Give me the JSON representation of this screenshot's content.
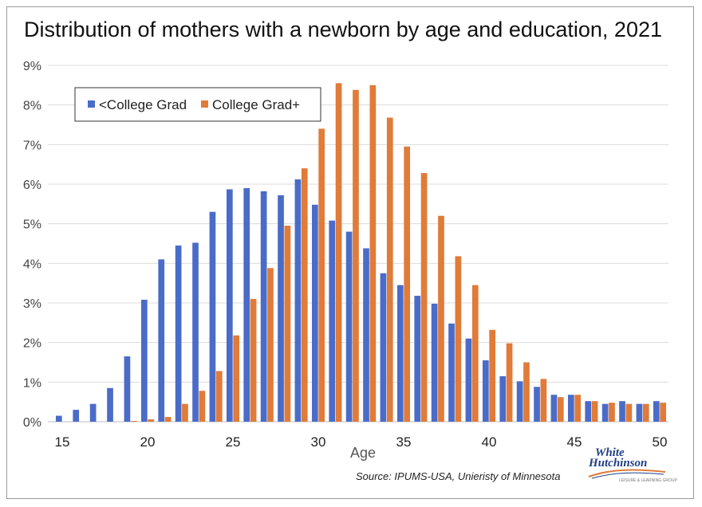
{
  "chart_data": {
    "type": "bar",
    "title": "Distribution of mothers with a newborn by age and education, 2021",
    "xlabel": "Age",
    "ylabel": "",
    "xlim": [
      15,
      50
    ],
    "ylim": [
      0,
      9
    ],
    "x_ticks": [
      "15",
      "20",
      "25",
      "30",
      "35",
      "40",
      "45",
      "50"
    ],
    "y_ticks": [
      "0%",
      "1%",
      "2%",
      "3%",
      "4%",
      "5%",
      "6%",
      "7%",
      "8%",
      "9%"
    ],
    "grid": "horizontal",
    "legend_position": "top-left",
    "categories": [
      15,
      16,
      17,
      18,
      19,
      20,
      21,
      22,
      23,
      24,
      25,
      26,
      27,
      28,
      29,
      30,
      31,
      32,
      33,
      34,
      35,
      36,
      37,
      38,
      39,
      40,
      41,
      42,
      43,
      44,
      45,
      46,
      47,
      48,
      49,
      50
    ],
    "series": [
      {
        "name": "<College Grad",
        "color": "#4a6cc8",
        "values": [
          0.15,
          0.3,
          0.45,
          0.85,
          1.65,
          3.08,
          4.1,
          4.45,
          4.52,
          5.3,
          5.87,
          5.9,
          5.82,
          5.72,
          6.12,
          5.48,
          5.08,
          4.8,
          4.38,
          3.75,
          3.45,
          3.18,
          2.98,
          2.48,
          2.1,
          1.55,
          1.15,
          1.02,
          0.88,
          0.68,
          0.68,
          0.52,
          0.45,
          0.52,
          0.45,
          0.52
        ]
      },
      {
        "name": "College Grad+",
        "color": "#e07b39",
        "values": [
          0,
          0,
          0,
          0,
          0.02,
          0.06,
          0.12,
          0.45,
          0.78,
          1.28,
          2.18,
          3.1,
          3.88,
          4.95,
          6.4,
          7.4,
          8.55,
          8.38,
          8.5,
          7.68,
          6.95,
          6.28,
          5.2,
          4.18,
          3.45,
          2.32,
          1.98,
          1.5,
          1.08,
          0.62,
          0.68,
          0.52,
          0.48,
          0.45,
          0.45,
          0.48
        ]
      }
    ]
  },
  "source": "Source: IPUMS-USA, Unieristy of Minnesota",
  "logo": {
    "line1": "White",
    "line2": "Hutchinson",
    "tagline": "LEISURE & LEARNING GROUP"
  }
}
